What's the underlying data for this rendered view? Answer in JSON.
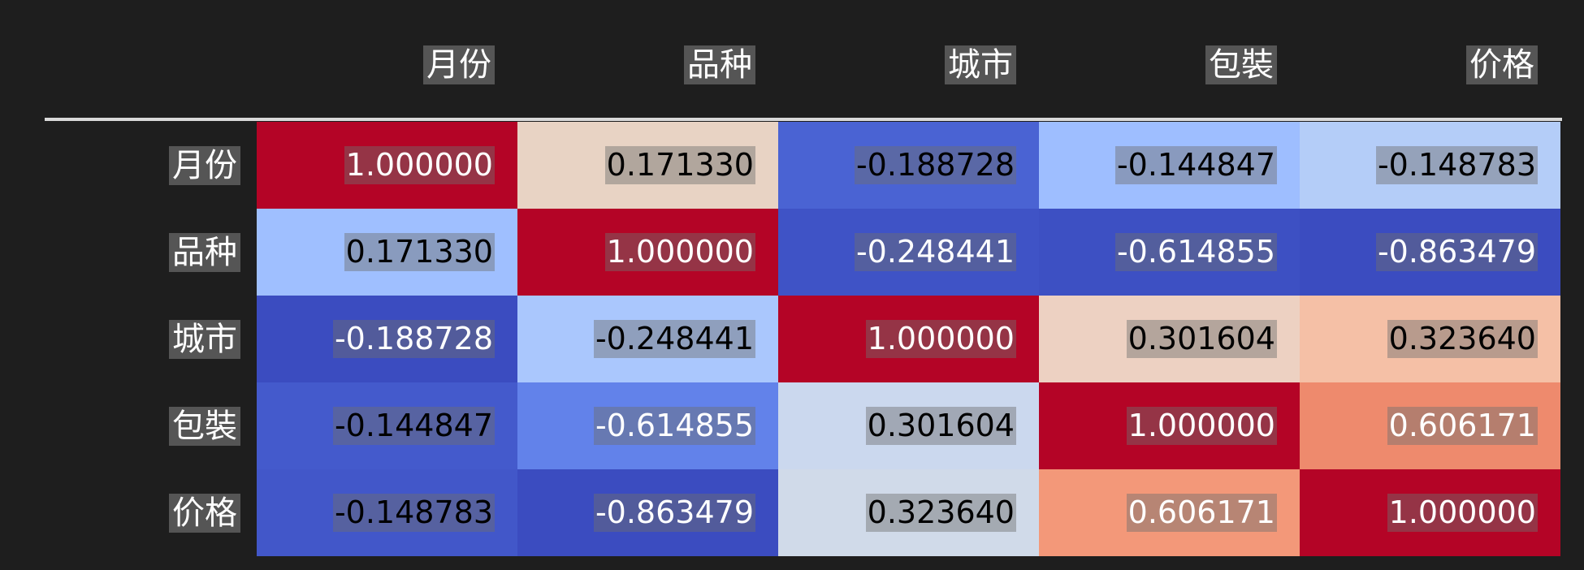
{
  "columns": [
    "月份",
    "品种",
    "城市",
    "包裝",
    "价格"
  ],
  "rows": [
    {
      "label": "月份",
      "values": [
        "1.000000",
        "0.171330",
        "-0.188728",
        "-0.144847",
        "-0.148783"
      ],
      "colors": [
        "#b40426",
        "#e8d3c4",
        "#4a63d3",
        "#9ebeff",
        "#b4cdf8"
      ],
      "text": [
        "#ffffff",
        "#000000",
        "#000000",
        "#000000",
        "#000000"
      ]
    },
    {
      "label": "品种",
      "values": [
        "0.171330",
        "1.000000",
        "-0.248441",
        "-0.614855",
        "-0.863479"
      ],
      "colors": [
        "#9fbfff",
        "#b40426",
        "#3f53c6",
        "#3d50c3",
        "#3b4cc0"
      ],
      "text": [
        "#000000",
        "#ffffff",
        "#ffffff",
        "#ffffff",
        "#ffffff"
      ]
    },
    {
      "label": "城市",
      "values": [
        "-0.188728",
        "-0.248441",
        "1.000000",
        "0.301604",
        "0.323640"
      ],
      "colors": [
        "#3b4cc0",
        "#aac7fd",
        "#b40426",
        "#edd1c2",
        "#f5c0a6"
      ],
      "text": [
        "#ffffff",
        "#000000",
        "#ffffff",
        "#000000",
        "#000000"
      ]
    },
    {
      "label": "包裝",
      "values": [
        "-0.144847",
        "-0.614855",
        "0.301604",
        "1.000000",
        "0.606171"
      ],
      "colors": [
        "#445acc",
        "#6282ea",
        "#cbd8ee",
        "#b40426",
        "#ee8a6d"
      ],
      "text": [
        "#000000",
        "#ffffff",
        "#000000",
        "#ffffff",
        "#ffffff"
      ]
    },
    {
      "label": "价格",
      "values": [
        "-0.148783",
        "-0.863479",
        "0.323640",
        "0.606171",
        "1.000000"
      ],
      "colors": [
        "#4257c9",
        "#3b4cc0",
        "#d0dae9",
        "#f39879",
        "#b40426"
      ],
      "text": [
        "#000000",
        "#ffffff",
        "#000000",
        "#ffffff",
        "#ffffff"
      ]
    }
  ]
}
